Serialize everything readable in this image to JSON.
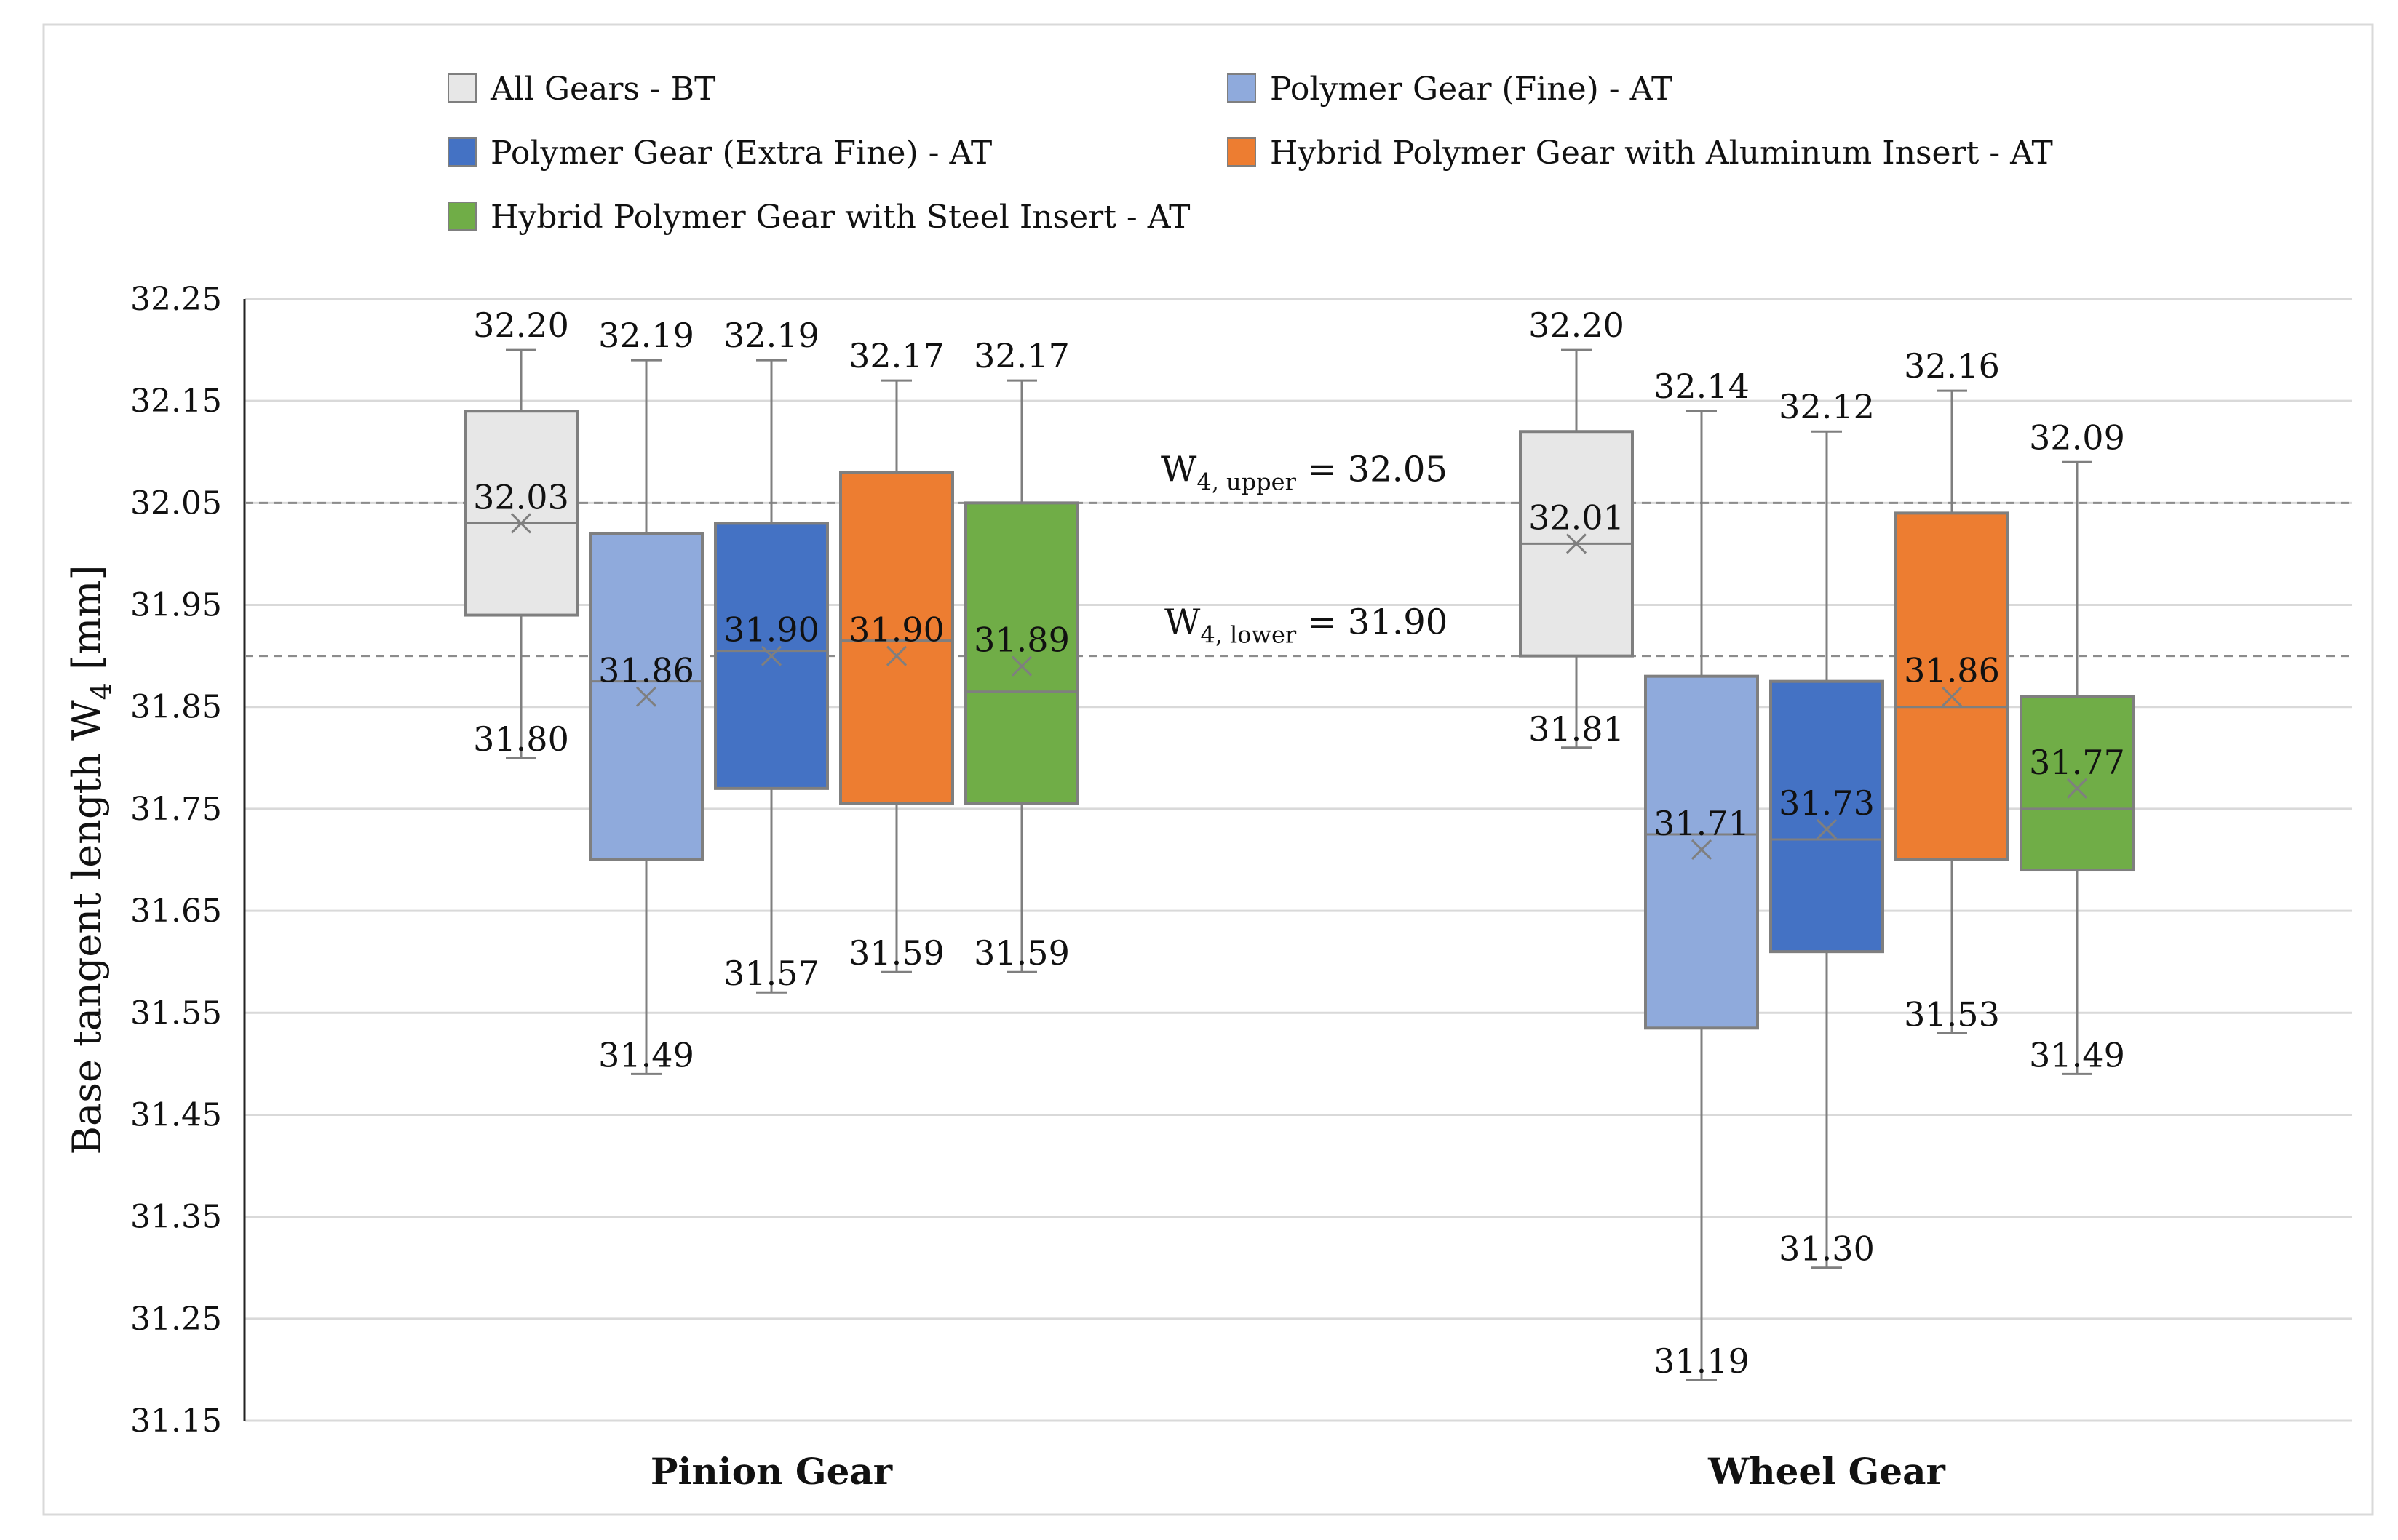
{
  "chart_data": {
    "type": "boxplot",
    "title": "",
    "ylabel": "Base tangent length W",
    "ylabel_subscript": "4",
    "ylabel_unit": "[mm]",
    "ylim": [
      31.15,
      32.25
    ],
    "yticks": [
      "31.15",
      "31.25",
      "31.35",
      "31.45",
      "31.55",
      "31.65",
      "31.75",
      "31.85",
      "31.95",
      "32.05",
      "32.15",
      "32.25"
    ],
    "grid": true,
    "legend_position": "top",
    "categories": [
      "Pinion Gear",
      "Wheel Gear"
    ],
    "series": [
      {
        "name": "All Gears - BT",
        "color": "#e7e7e7",
        "boxes": [
          {
            "min": 31.8,
            "q1": 31.94,
            "median": 32.03,
            "q3": 32.14,
            "max": 32.2,
            "mean": 32.03,
            "labels": {
              "max": "32.20",
              "mean": "32.03",
              "min": "31.80"
            }
          },
          {
            "min": 31.81,
            "q1": 31.9,
            "median": 32.01,
            "q3": 32.12,
            "max": 32.2,
            "mean": 32.01,
            "labels": {
              "max": "32.20",
              "mean": "32.01",
              "min": "31.81"
            }
          }
        ]
      },
      {
        "name": "Polymer Gear (Fine) - AT",
        "color": "#8faadc",
        "boxes": [
          {
            "min": 31.49,
            "q1": 31.7,
            "median": 31.875,
            "q3": 32.02,
            "max": 32.19,
            "mean": 31.86,
            "labels": {
              "max": "32.19",
              "mean": "31.86",
              "min": "31.49"
            }
          },
          {
            "min": 31.19,
            "q1": 31.535,
            "median": 31.725,
            "q3": 31.88,
            "max": 32.14,
            "mean": 31.71,
            "labels": {
              "max": "32.14",
              "mean": "31.71",
              "min": "31.19"
            }
          }
        ]
      },
      {
        "name": "Polymer Gear (Extra Fine) - AT",
        "color": "#4472c4",
        "boxes": [
          {
            "min": 31.57,
            "q1": 31.77,
            "median": 31.905,
            "q3": 32.03,
            "max": 32.19,
            "mean": 31.9,
            "labels": {
              "max": "32.19",
              "mean": "31.90",
              "min": "31.57"
            }
          },
          {
            "min": 31.3,
            "q1": 31.61,
            "median": 31.72,
            "q3": 31.875,
            "max": 32.12,
            "mean": 31.73,
            "labels": {
              "max": "32.12",
              "mean": "31.73",
              "min": "31.30"
            }
          }
        ]
      },
      {
        "name": "Hybrid Polymer Gear with Aluminum Insert - AT",
        "color": "#ed7d31",
        "boxes": [
          {
            "min": 31.59,
            "q1": 31.755,
            "median": 31.915,
            "q3": 32.08,
            "max": 32.17,
            "mean": 31.9,
            "labels": {
              "max": "32.17",
              "mean": "31.90",
              "min": "31.59"
            }
          },
          {
            "min": 31.53,
            "q1": 31.7,
            "median": 31.85,
            "q3": 32.04,
            "max": 32.16,
            "mean": 31.86,
            "labels": {
              "max": "32.16",
              "mean": "31.86",
              "min": "31.53"
            }
          }
        ]
      },
      {
        "name": "Hybrid Polymer Gear with Steel Insert - AT",
        "color": "#70ad47",
        "boxes": [
          {
            "min": 31.59,
            "q1": 31.755,
            "median": 31.865,
            "q3": 32.05,
            "max": 32.17,
            "mean": 31.89,
            "labels": {
              "max": "32.17",
              "mean": "31.89",
              "min": "31.59"
            }
          },
          {
            "min": 31.49,
            "q1": 31.69,
            "median": 31.75,
            "q3": 31.86,
            "max": 32.09,
            "mean": 31.77,
            "labels": {
              "max": "32.09",
              "mean": "31.77",
              "min": "31.49"
            }
          }
        ]
      }
    ],
    "thresholds": [
      {
        "value": 32.05,
        "label_main": "W",
        "label_sub": "4, upper",
        "label_rest": " = 32.05"
      },
      {
        "value": 31.9,
        "label_main": "W",
        "label_sub": "4, lower",
        "label_rest": " = 31.90"
      }
    ]
  }
}
